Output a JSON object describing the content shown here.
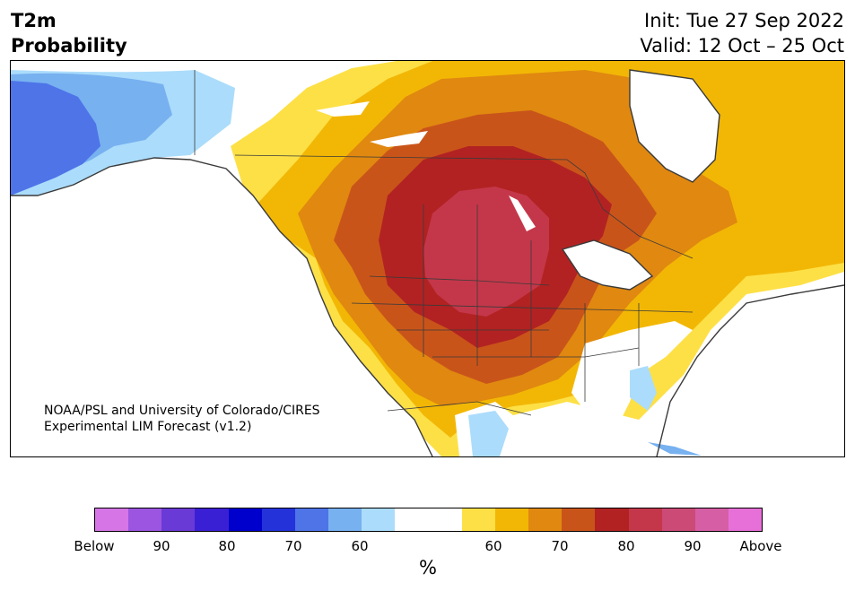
{
  "header": {
    "variable_line1": "T2m",
    "variable_line2": "Probability",
    "init": "Init: Tue 27 Sep 2022",
    "valid": "Valid: 12 Oct – 25 Oct"
  },
  "credit": {
    "line1": "NOAA/PSL and University of Colorado/CIRES",
    "line2": "Experimental LIM Forecast (v1.2)"
  },
  "colorbar": {
    "unit": "%",
    "colors": [
      "#d676e6",
      "#9b55e0",
      "#6a3ad6",
      "#3a20d4",
      "#0000cc",
      "#2433d9",
      "#4e74e8",
      "#77b1f0",
      "#abdcfb",
      "#ffffff",
      "#ffffff",
      "#fde046",
      "#f2b705",
      "#e08810",
      "#c9541a",
      "#b22222",
      "#c4374a",
      "#cc4a76",
      "#d65ea5",
      "#e670d8"
    ],
    "ticks": [
      "Below",
      "90",
      "80",
      "70",
      "60",
      "60",
      "70",
      "80",
      "90",
      "Above"
    ]
  },
  "palette": {
    "below_light": "#abdcfb",
    "below_mid": "#77b1f0",
    "below_dark": "#4e74e8",
    "above_60": "#fde046",
    "above_65": "#f2b705",
    "above_70": "#e08810",
    "above_75": "#c9541a",
    "above_80": "#b22222",
    "above_85": "#c4374a",
    "border": "#3a3a3a"
  }
}
